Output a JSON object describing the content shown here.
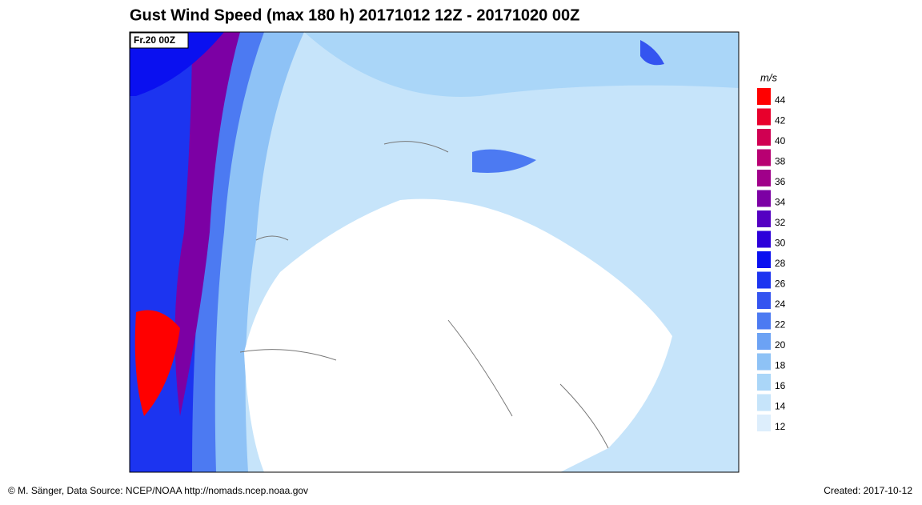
{
  "header": {
    "title": "Gust Wind Speed (max 180 h) 20171012 12Z - 20171020 00Z"
  },
  "map": {
    "time_label": "Fr.20 00Z"
  },
  "legend": {
    "unit": "m/s",
    "items": [
      {
        "label": 44,
        "color": "#ff0000"
      },
      {
        "label": 42,
        "color": "#e8002c"
      },
      {
        "label": 40,
        "color": "#d00052"
      },
      {
        "label": 38,
        "color": "#b80072"
      },
      {
        "label": 36,
        "color": "#a0008a"
      },
      {
        "label": 34,
        "color": "#7c00a4"
      },
      {
        "label": 32,
        "color": "#5400c2"
      },
      {
        "label": 30,
        "color": "#2c00da"
      },
      {
        "label": 28,
        "color": "#0a10f0"
      },
      {
        "label": 26,
        "color": "#1c34f0"
      },
      {
        "label": 24,
        "color": "#3454f0"
      },
      {
        "label": 22,
        "color": "#4c7af2"
      },
      {
        "label": 20,
        "color": "#6ca2f4"
      },
      {
        "label": 18,
        "color": "#8ec2f6"
      },
      {
        "label": 16,
        "color": "#aad6f8"
      },
      {
        "label": 14,
        "color": "#c6e4fa"
      },
      {
        "label": 12,
        "color": "#ddeefc"
      }
    ]
  },
  "footer": {
    "credit": "© M. Sänger, Data Source: NCEP/NOAA http://nomads.ncep.noaa.gov",
    "created": "Created: 2017-10-12"
  }
}
